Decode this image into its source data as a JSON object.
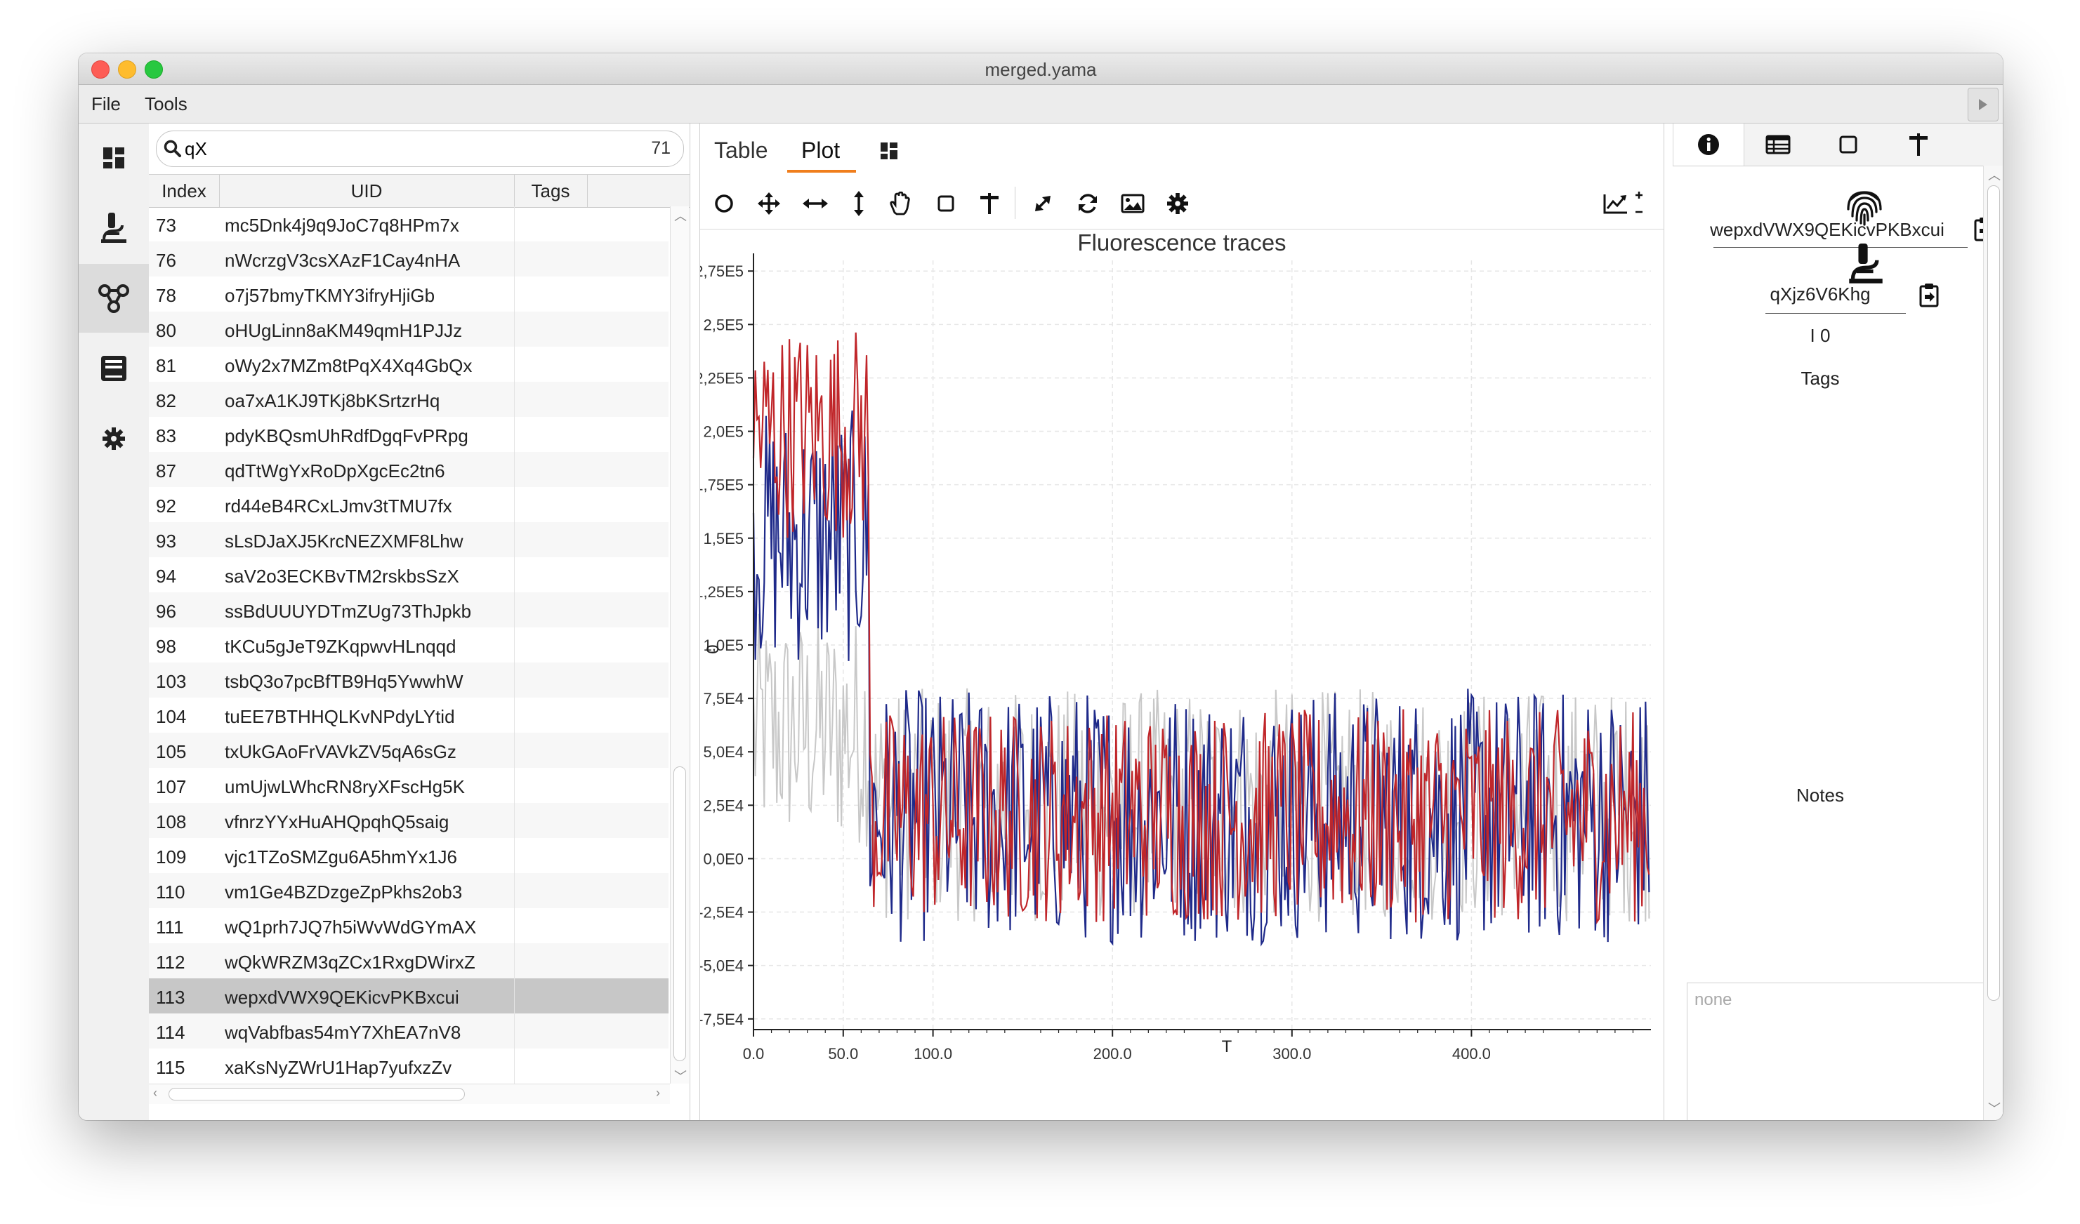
{
  "window": {
    "title": "merged.yama"
  },
  "menu": {
    "file": "File",
    "tools": "Tools"
  },
  "search": {
    "value": "qX",
    "count": "71"
  },
  "table": {
    "headers": {
      "index": "Index",
      "uid": "UID",
      "tags": "Tags"
    },
    "rows": [
      {
        "index": "73",
        "uid": "mc5Dnk4j9q9JoC7q8HPm7x"
      },
      {
        "index": "76",
        "uid": "nWcrzgV3csXAzF1Cay4nHA"
      },
      {
        "index": "78",
        "uid": "o7j57bmyTKMY3ifryHjiGb"
      },
      {
        "index": "80",
        "uid": "oHUgLinn8aKM49qmH1PJJz"
      },
      {
        "index": "81",
        "uid": "oWy2x7MZm8tPqX4Xq4GbQx"
      },
      {
        "index": "82",
        "uid": "oa7xA1KJ9TKj8bKSrtzrHq"
      },
      {
        "index": "83",
        "uid": "pdyKBQsmUhRdfDgqFvPRpg"
      },
      {
        "index": "87",
        "uid": "qdTtWgYxRoDpXgcEc2tn6"
      },
      {
        "index": "92",
        "uid": "rd44eB4RCxLJmv3tTMU7fx"
      },
      {
        "index": "93",
        "uid": "sLsDJaXJ5KrcNEZXMF8Lhw"
      },
      {
        "index": "94",
        "uid": "saV2o3ECKBvTM2rskbsSzX"
      },
      {
        "index": "96",
        "uid": "ssBdUUUYDTmZUg73ThJpkb"
      },
      {
        "index": "98",
        "uid": "tKCu5gJeT9ZKqpwvHLnqqd"
      },
      {
        "index": "103",
        "uid": "tsbQ3o7pcBfTB9Hq5YwwhW"
      },
      {
        "index": "104",
        "uid": "tuEE7BTHHQLKvNPdyLYtid"
      },
      {
        "index": "105",
        "uid": "txUkGAoFrVAVkZV5qA6sGz"
      },
      {
        "index": "107",
        "uid": "umUjwLWhcRN8ryXFscHg5K"
      },
      {
        "index": "108",
        "uid": "vfnrzYYxHuAHQpqhQ5saig"
      },
      {
        "index": "109",
        "uid": "vjc1TZoSMZgu6A5hmYx1J6"
      },
      {
        "index": "110",
        "uid": "vm1Ge4BZDzgeZpPkhs2ob3"
      },
      {
        "index": "111",
        "uid": "wQ1prh7JQ7h5iWvWdGYmAX"
      },
      {
        "index": "112",
        "uid": "wQkWRZM3qZCx1RxgDWirxZ"
      },
      {
        "index": "113",
        "uid": "wepxdVWX9QEKicvPKBxcui"
      },
      {
        "index": "114",
        "uid": "wqVabfbas54mY7XhEA7nV8"
      },
      {
        "index": "115",
        "uid": "xaKsNyZWrU1Hap7yufxzZv"
      }
    ],
    "selected_index": "113"
  },
  "plot_tabs": {
    "table": "Table",
    "plot": "Plot"
  },
  "toolbar": {
    "icons": [
      "circle-icon",
      "move-icon",
      "horizontal-arrows-icon",
      "vertical-arrows-icon",
      "hand-icon",
      "square-icon",
      "pin-icon",
      "expand-icon",
      "refresh-icon",
      "image-icon",
      "gear-icon"
    ]
  },
  "chart_data": {
    "type": "line",
    "title": "Fluorescence traces",
    "xlabel": "T",
    "ylabel": "0",
    "xlim": [
      0,
      500
    ],
    "ylim": [
      -80000,
      280000
    ],
    "x_ticks": [
      {
        "value": 0,
        "label": "0.0"
      },
      {
        "value": 50,
        "label": "50.0"
      },
      {
        "value": 100,
        "label": "100.0"
      },
      {
        "value": 200,
        "label": "200.0"
      },
      {
        "value": 300,
        "label": "300.0"
      },
      {
        "value": 400,
        "label": "400.0"
      }
    ],
    "y_ticks": [
      {
        "value": 275000,
        "label": "2,75E5"
      },
      {
        "value": 250000,
        "label": "2,5E5"
      },
      {
        "value": 225000,
        "label": "2,25E5"
      },
      {
        "value": 200000,
        "label": "2,0E5"
      },
      {
        "value": 175000,
        "label": "1,75E5"
      },
      {
        "value": 150000,
        "label": "1,5E5"
      },
      {
        "value": 125000,
        "label": "1,25E5"
      },
      {
        "value": 100000,
        "label": "1,0E5"
      },
      {
        "value": 75000,
        "label": "7,5E4"
      },
      {
        "value": 50000,
        "label": "5,0E4"
      },
      {
        "value": 25000,
        "label": "2,5E4"
      },
      {
        "value": 0,
        "label": "0,0E0"
      },
      {
        "value": -25000,
        "label": "-2,5E4"
      },
      {
        "value": -50000,
        "label": "-5,0E4"
      },
      {
        "value": -75000,
        "label": "-7,5E4"
      }
    ],
    "grid": true,
    "series": [
      {
        "color": "#c8c8c8",
        "early_level": 60000,
        "late_level": 25000,
        "noise": 55000
      },
      {
        "color": "#1f2a8a",
        "early_level": 150000,
        "late_level": 20000,
        "noise": 60000
      },
      {
        "color": "#c0262a",
        "early_level": 200000,
        "late_level": 20000,
        "noise": 50000
      }
    ],
    "n_points": 500,
    "drop_at": 65
  },
  "info": {
    "tab_icons": [
      "info-icon",
      "table-icon",
      "square-icon",
      "pin-icon"
    ],
    "uid": "wepxdVWX9QEKicvPKBxcui",
    "sample_uid": "qXjz6V6Khg",
    "io": "I 0",
    "tags_label": "Tags",
    "notes_label": "Notes",
    "notes_placeholder": "none"
  }
}
